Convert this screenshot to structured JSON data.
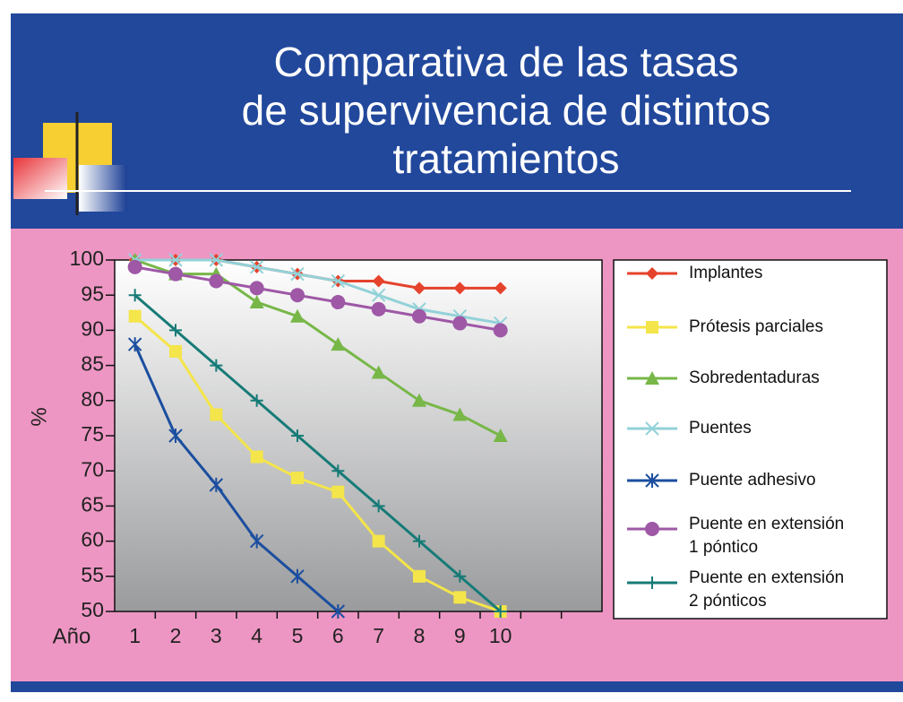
{
  "title": "Comparativa de las tasas\nde supervivencia de distintos\ntratamientos",
  "chart_data": {
    "type": "line",
    "y_label": "%",
    "x_label": "Año",
    "categories": [
      "1",
      "2",
      "3",
      "4",
      "5",
      "6",
      "7",
      "8",
      "9",
      "10"
    ],
    "ylim": [
      50,
      100
    ],
    "yticks": [
      50,
      55,
      60,
      65,
      70,
      75,
      80,
      85,
      90,
      95,
      100
    ],
    "series": [
      {
        "name": "Implantes",
        "color": "#e5432c",
        "marker": "diamond",
        "values": [
          100,
          100,
          100,
          99,
          98,
          97,
          97,
          96,
          96,
          96
        ]
      },
      {
        "name": "Prótesis parciales",
        "color": "#f4e54a",
        "marker": "square",
        "values": [
          92,
          87,
          78,
          72,
          69,
          67,
          60,
          55,
          52,
          50
        ]
      },
      {
        "name": "Sobredentaduras",
        "color": "#77b748",
        "marker": "triangle",
        "values": [
          100,
          98,
          98,
          94,
          92,
          88,
          84,
          80,
          78,
          75
        ]
      },
      {
        "name": "Puentes",
        "color": "#92d2d8",
        "marker": "x",
        "values": [
          100,
          100,
          100,
          99,
          98,
          97,
          95,
          93,
          92,
          91
        ]
      },
      {
        "name": "Puente adhesivo",
        "color": "#1b4e9f",
        "marker": "asterisk",
        "values": [
          88,
          75,
          68,
          60,
          55,
          50,
          null,
          null,
          null,
          null
        ]
      },
      {
        "name": "Puente en extensión\n1 póntico",
        "color": "#9e58a6",
        "marker": "circle",
        "values": [
          99,
          98,
          97,
          96,
          95,
          94,
          93,
          92,
          91,
          90
        ]
      },
      {
        "name": "Puente en extensión\n2 pónticos",
        "color": "#167b77",
        "marker": "plus",
        "values": [
          95,
          90,
          85,
          80,
          75,
          70,
          65,
          60,
          55,
          50
        ]
      }
    ]
  }
}
